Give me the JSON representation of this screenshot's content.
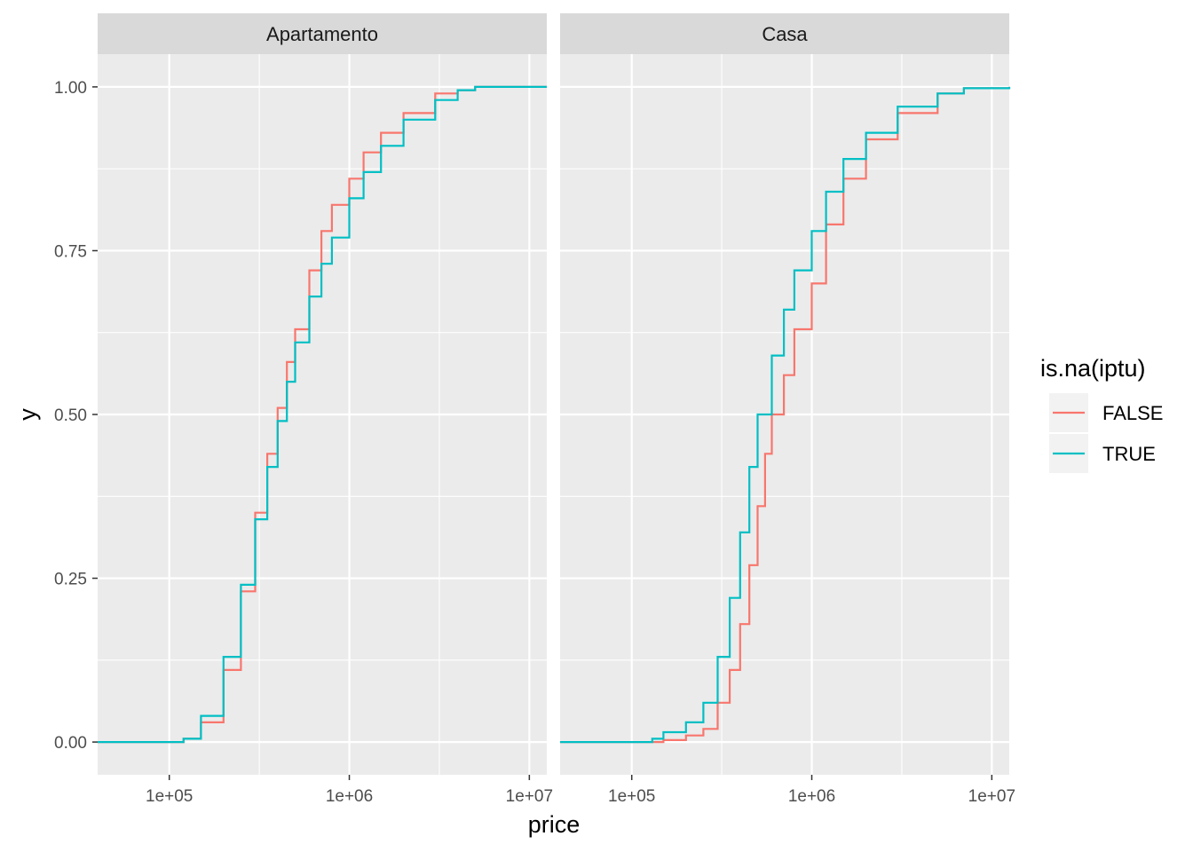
{
  "chart_data": {
    "type": "line",
    "title": "",
    "xlabel": "price",
    "ylabel": "y",
    "x_scale": "log10",
    "xlim": [
      40000,
      12500000
    ],
    "ylim": [
      -0.05,
      1.05
    ],
    "x_ticks": [
      100000,
      1000000,
      10000000
    ],
    "x_tick_labels": [
      "1e+05",
      "1e+06",
      "1e+07"
    ],
    "y_ticks": [
      0,
      0.25,
      0.5,
      0.75,
      1
    ],
    "y_tick_labels": [
      "0.00",
      "0.25",
      "0.50",
      "0.75",
      "1.00"
    ],
    "grid": true,
    "legend": {
      "title": "is.na(iptu)",
      "position": "right",
      "entries": [
        {
          "label": "FALSE",
          "color": "#F8766D"
        },
        {
          "label": "TRUE",
          "color": "#00BFC4"
        }
      ]
    },
    "colors": {
      "FALSE": "#F8766D",
      "TRUE": "#00BFC4"
    },
    "panels": [
      {
        "name": "Apartamento",
        "series": [
          {
            "name": "FALSE",
            "x": [
              40000,
              100000,
              120000,
              150000,
              200000,
              250000,
              300000,
              350000,
              400000,
              450000,
              500000,
              600000,
              700000,
              800000,
              1000000,
              1200000,
              1500000,
              2000000,
              3000000,
              4000000,
              5000000,
              7000000,
              12500000
            ],
            "y": [
              0,
              0,
              0.005,
              0.03,
              0.11,
              0.23,
              0.35,
              0.44,
              0.51,
              0.58,
              0.63,
              0.72,
              0.78,
              0.82,
              0.86,
              0.9,
              0.93,
              0.96,
              0.99,
              0.995,
              1,
              1,
              1
            ]
          },
          {
            "name": "TRUE",
            "x": [
              40000,
              100000,
              120000,
              150000,
              200000,
              250000,
              300000,
              350000,
              400000,
              450000,
              500000,
              600000,
              700000,
              800000,
              1000000,
              1200000,
              1500000,
              2000000,
              3000000,
              4000000,
              5000000,
              7000000,
              12500000
            ],
            "y": [
              0,
              0,
              0.005,
              0.04,
              0.13,
              0.24,
              0.34,
              0.42,
              0.49,
              0.55,
              0.61,
              0.68,
              0.73,
              0.77,
              0.83,
              0.87,
              0.91,
              0.95,
              0.98,
              0.995,
              1,
              1,
              1
            ]
          }
        ]
      },
      {
        "name": "Casa",
        "series": [
          {
            "name": "FALSE",
            "x": [
              40000,
              120000,
              150000,
              200000,
              250000,
              300000,
              350000,
              400000,
              450000,
              500000,
              550000,
              600000,
              700000,
              800000,
              1000000,
              1200000,
              1500000,
              2000000,
              3000000,
              5000000,
              7000000,
              12500000
            ],
            "y": [
              0,
              0,
              0.003,
              0.01,
              0.02,
              0.06,
              0.11,
              0.18,
              0.27,
              0.36,
              0.44,
              0.5,
              0.56,
              0.63,
              0.7,
              0.79,
              0.86,
              0.92,
              0.96,
              0.99,
              0.998,
              1
            ]
          },
          {
            "name": "TRUE",
            "x": [
              40000,
              120000,
              130000,
              150000,
              200000,
              250000,
              300000,
              350000,
              400000,
              450000,
              500000,
              600000,
              700000,
              800000,
              1000000,
              1200000,
              1500000,
              2000000,
              3000000,
              5000000,
              7000000,
              12500000
            ],
            "y": [
              0,
              0,
              0.005,
              0.015,
              0.03,
              0.06,
              0.13,
              0.22,
              0.32,
              0.42,
              0.5,
              0.59,
              0.66,
              0.72,
              0.78,
              0.84,
              0.89,
              0.93,
              0.97,
              0.99,
              0.998,
              1
            ]
          }
        ]
      }
    ]
  }
}
